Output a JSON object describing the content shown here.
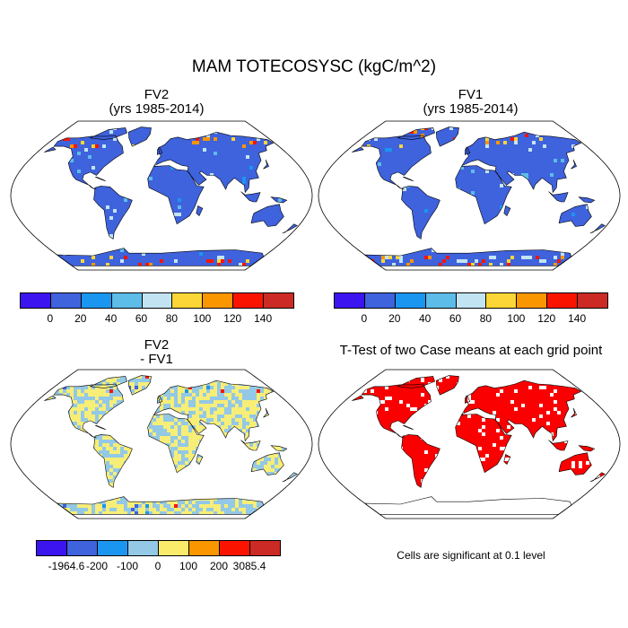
{
  "figure": {
    "title": "MAM TOTECOSYSC (kgC/m^2)"
  },
  "panels": [
    {
      "id": "fv2",
      "title_line1": "FV2",
      "title_line2": "(yrs 1985-2014)"
    },
    {
      "id": "fv1",
      "title_line1": "FV1",
      "title_line2": "(yrs 1985-2014)"
    },
    {
      "id": "diff",
      "title_line1": "FV2",
      "title_line2": "- FV1"
    },
    {
      "id": "ttest",
      "title_line1": "T-Test of two Case means at each grid point",
      "note": "Cells are significant at 0.1 level"
    }
  ],
  "colorbars": {
    "absolute": {
      "colors": [
        "#3c14f0",
        "#3f62dd",
        "#1b96f0",
        "#5ebce8",
        "#c2e4f2",
        "#fcd637",
        "#fa9600",
        "#fa1400",
        "#cc2a24"
      ],
      "labels": [
        "0",
        "20",
        "40",
        "60",
        "80",
        "100",
        "120",
        "140"
      ]
    },
    "difference": {
      "colors": [
        "#3c14f0",
        "#3f62dd",
        "#1b96f0",
        "#93c8e6",
        "#fbeb6a",
        "#fa9600",
        "#fa1400",
        "#cc2a24"
      ],
      "labels": [
        "-1964.6",
        "-200",
        "-100",
        "0",
        "100",
        "200",
        "3085.4"
      ]
    }
  },
  "map_colors": {
    "fv2_land": "#3f62dd",
    "fv1_land": "#3f62dd",
    "diff_land": "#f7ee78",
    "diff_speckle": "#93c8e6",
    "ttest_land": "#fa0000",
    "ttest_gap": "#ffffff",
    "boundary": "#000000",
    "ocean": "#ffffff"
  }
}
